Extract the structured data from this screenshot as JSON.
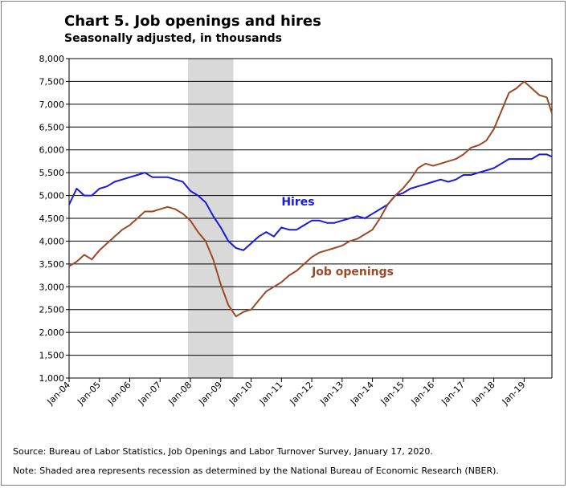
{
  "title": "Chart 5. Job openings and hires",
  "subtitle": "Seasonally adjusted, in thousands",
  "source": "Source: Bureau of Labor Statistics, Job Openings and Labor Turnover Survey, January 17, 2020.",
  "note": "Note: Shaded area represents recession as determined by the National Bureau of Economic Research (NBER).",
  "colors": {
    "hires": "#1a1adb",
    "openings": "#9a4a26",
    "recession": "#d9d9d9",
    "grid": "#000000"
  },
  "chart_data": {
    "type": "line",
    "title": "Chart 5. Job openings and hires",
    "subtitle": "Seasonally adjusted, in thousands",
    "ylim": [
      1000,
      8000
    ],
    "yticks": [
      1000,
      1500,
      2000,
      2500,
      3000,
      3500,
      4000,
      4500,
      5000,
      5500,
      6000,
      6500,
      7000,
      7500,
      8000
    ],
    "ytick_labels": [
      "1,000",
      "1,500",
      "2,000",
      "2,500",
      "3,000",
      "3,500",
      "4,000",
      "4,500",
      "5,000",
      "5,500",
      "6,000",
      "6,500",
      "7,000",
      "7,500",
      "8,000"
    ],
    "xlim": [
      "2004-01",
      "2019-12"
    ],
    "xticks": [
      "2004-01",
      "2005-01",
      "2006-01",
      "2007-01",
      "2008-01",
      "2009-01",
      "2010-01",
      "2011-01",
      "2012-01",
      "2013-01",
      "2014-01",
      "2015-01",
      "2016-01",
      "2017-01",
      "2018-01",
      "2019-01"
    ],
    "xtick_labels": [
      "Jan-04",
      "Jan-05",
      "Jan-06",
      "Jan-07",
      "Jan-08",
      "Jan-09",
      "Jan-10",
      "Jan-11",
      "Jan-12",
      "Jan-13",
      "Jan-14",
      "Jan-15",
      "Jan-16",
      "Jan-17",
      "Jan-18",
      "Jan-19"
    ],
    "grid": "horizontal",
    "recession": {
      "start": "2007-12",
      "end": "2009-06"
    },
    "series": [
      {
        "name": "Hires",
        "label_anchor": {
          "date": "2011-01",
          "value": 4780
        },
        "x": [
          "2004-01",
          "2004-04",
          "2004-07",
          "2004-10",
          "2005-01",
          "2005-04",
          "2005-07",
          "2005-10",
          "2006-01",
          "2006-04",
          "2006-07",
          "2006-10",
          "2007-01",
          "2007-04",
          "2007-07",
          "2007-10",
          "2008-01",
          "2008-04",
          "2008-07",
          "2008-10",
          "2009-01",
          "2009-04",
          "2009-07",
          "2009-10",
          "2010-01",
          "2010-04",
          "2010-07",
          "2010-10",
          "2011-01",
          "2011-04",
          "2011-07",
          "2011-10",
          "2012-01",
          "2012-04",
          "2012-07",
          "2012-10",
          "2013-01",
          "2013-04",
          "2013-07",
          "2013-10",
          "2014-01",
          "2014-04",
          "2014-07",
          "2014-10",
          "2015-01",
          "2015-04",
          "2015-07",
          "2015-10",
          "2016-01",
          "2016-04",
          "2016-07",
          "2016-10",
          "2017-01",
          "2017-04",
          "2017-07",
          "2017-10",
          "2018-01",
          "2018-04",
          "2018-07",
          "2018-10",
          "2019-01",
          "2019-04",
          "2019-07",
          "2019-10",
          "2019-12"
        ],
        "values": [
          4800,
          5150,
          5000,
          5000,
          5150,
          5200,
          5300,
          5350,
          5400,
          5450,
          5500,
          5400,
          5400,
          5400,
          5350,
          5300,
          5100,
          5000,
          4850,
          4550,
          4300,
          4000,
          3850,
          3800,
          3950,
          4100,
          4200,
          4100,
          4300,
          4250,
          4250,
          4350,
          4450,
          4450,
          4400,
          4400,
          4450,
          4500,
          4550,
          4500,
          4600,
          4700,
          4800,
          5000,
          5050,
          5150,
          5200,
          5250,
          5300,
          5350,
          5300,
          5350,
          5450,
          5450,
          5500,
          5550,
          5600,
          5700,
          5800,
          5800,
          5800,
          5800,
          5900,
          5900,
          5850
        ]
      },
      {
        "name": "Job openings",
        "label_anchor": {
          "date": "2012-01",
          "value": 3250
        },
        "x": [
          "2004-01",
          "2004-04",
          "2004-07",
          "2004-10",
          "2005-01",
          "2005-04",
          "2005-07",
          "2005-10",
          "2006-01",
          "2006-04",
          "2006-07",
          "2006-10",
          "2007-01",
          "2007-04",
          "2007-07",
          "2007-10",
          "2008-01",
          "2008-04",
          "2008-07",
          "2008-10",
          "2009-01",
          "2009-04",
          "2009-07",
          "2009-10",
          "2010-01",
          "2010-04",
          "2010-07",
          "2010-10",
          "2011-01",
          "2011-04",
          "2011-07",
          "2011-10",
          "2012-01",
          "2012-04",
          "2012-07",
          "2012-10",
          "2013-01",
          "2013-04",
          "2013-07",
          "2013-10",
          "2014-01",
          "2014-04",
          "2014-07",
          "2014-10",
          "2015-01",
          "2015-04",
          "2015-07",
          "2015-10",
          "2016-01",
          "2016-04",
          "2016-07",
          "2016-10",
          "2017-01",
          "2017-04",
          "2017-07",
          "2017-10",
          "2018-01",
          "2018-04",
          "2018-07",
          "2018-10",
          "2019-01",
          "2019-04",
          "2019-07",
          "2019-10",
          "2019-12"
        ],
        "values": [
          3450,
          3550,
          3700,
          3600,
          3800,
          3950,
          4100,
          4250,
          4350,
          4500,
          4650,
          4650,
          4700,
          4750,
          4700,
          4600,
          4450,
          4200,
          4000,
          3600,
          3050,
          2600,
          2350,
          2450,
          2500,
          2700,
          2900,
          3000,
          3100,
          3250,
          3350,
          3500,
          3650,
          3750,
          3800,
          3850,
          3900,
          4000,
          4050,
          4150,
          4250,
          4500,
          4800,
          5000,
          5150,
          5350,
          5600,
          5700,
          5650,
          5700,
          5750,
          5800,
          5900,
          6050,
          6100,
          6200,
          6450,
          6850,
          7250,
          7350,
          7500,
          7350,
          7200,
          7150,
          6800
        ]
      }
    ]
  }
}
